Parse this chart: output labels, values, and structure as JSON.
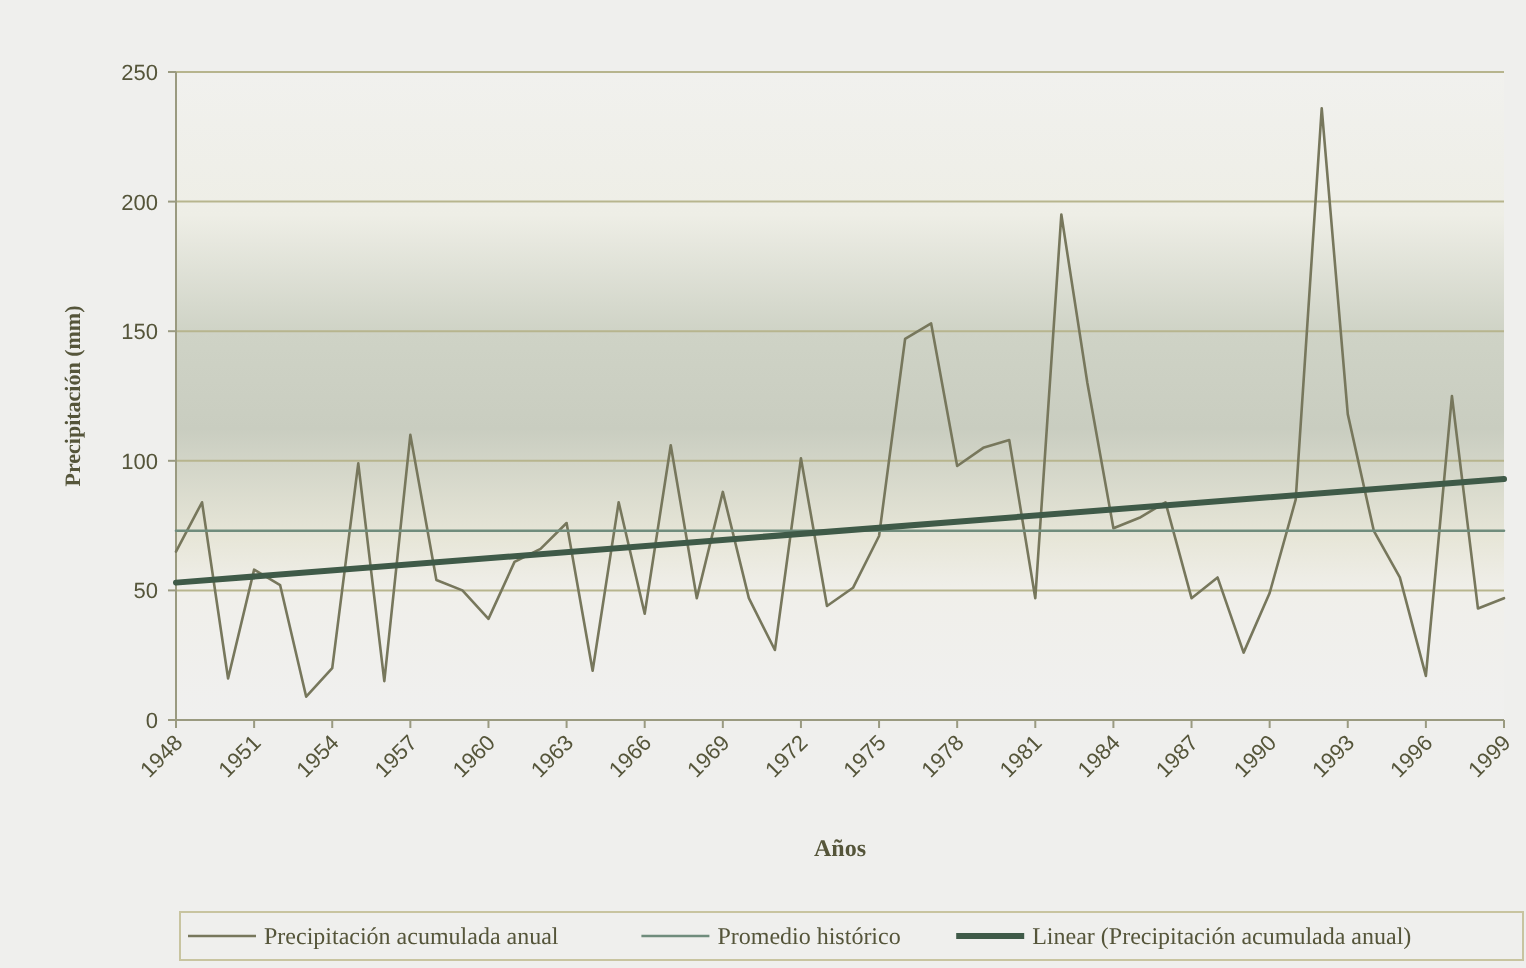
{
  "chart_data": {
    "type": "line",
    "xlabel": "Años",
    "ylabel": "Precipitación (mm)",
    "xlim": [
      1948,
      1999
    ],
    "xticks": [
      1948,
      1951,
      1954,
      1957,
      1960,
      1963,
      1966,
      1969,
      1972,
      1975,
      1978,
      1981,
      1984,
      1987,
      1990,
      1993,
      1996,
      1999
    ],
    "ylim": [
      0,
      250
    ],
    "yticks": [
      0,
      50,
      100,
      150,
      200,
      250
    ],
    "grid": "y",
    "legend": "bottom",
    "marker": "none",
    "line_style": "solid",
    "series": [
      {
        "name": "Precipitación acumulada anual",
        "color": "#77775c",
        "x": [
          1948,
          1949,
          1950,
          1951,
          1952,
          1953,
          1954,
          1955,
          1956,
          1957,
          1958,
          1959,
          1960,
          1961,
          1962,
          1963,
          1964,
          1965,
          1966,
          1967,
          1968,
          1969,
          1970,
          1971,
          1972,
          1973,
          1974,
          1975,
          1976,
          1977,
          1978,
          1979,
          1980,
          1981,
          1982,
          1983,
          1984,
          1985,
          1986,
          1987,
          1988,
          1989,
          1990,
          1991,
          1992,
          1993,
          1994,
          1995,
          1996,
          1997,
          1998,
          1999
        ],
        "values": [
          65,
          84,
          16,
          58,
          52,
          9,
          20,
          99,
          15,
          110,
          54,
          50,
          39,
          61,
          66,
          76,
          19,
          84,
          41,
          106,
          47,
          88,
          47,
          27,
          101,
          44,
          51,
          71,
          147,
          153,
          98,
          105,
          108,
          47,
          195,
          130,
          74,
          78,
          84,
          47,
          55,
          26,
          49,
          85,
          236,
          118,
          73,
          55,
          17,
          125,
          43,
          47
        ]
      },
      {
        "name": "Promedio histórico",
        "color": "#6f8c7c",
        "x": [
          1948,
          1999
        ],
        "values": [
          73,
          73
        ]
      },
      {
        "name": "Linear (Precipitación acumulada anual)",
        "color": "#3f5a48",
        "x": [
          1948,
          1999
        ],
        "values": [
          53,
          93
        ]
      }
    ]
  }
}
